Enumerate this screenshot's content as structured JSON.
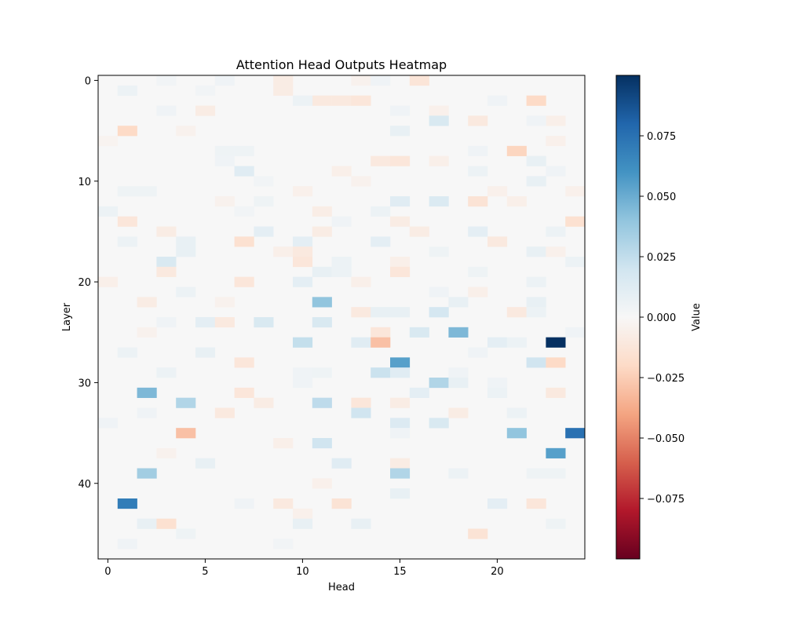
{
  "chart_data": {
    "type": "heatmap",
    "title": "Attention Head Outputs Heatmap",
    "xlabel": "Head",
    "ylabel": "Layer",
    "n_heads": 25,
    "n_layers": 48,
    "x_ticks": [
      "0",
      "5",
      "10",
      "15",
      "20"
    ],
    "y_ticks": [
      "0",
      "10",
      "20",
      "30",
      "40"
    ],
    "colorbar": {
      "label": "Value",
      "colormap": "RdBu",
      "vmin": -0.1,
      "vmax": 0.1,
      "ticks": [
        "0.075",
        "0.050",
        "0.025",
        "0.000",
        "−0.025",
        "−0.050",
        "−0.075"
      ],
      "tick_values": [
        0.075,
        0.05,
        0.025,
        0.0,
        -0.025,
        -0.05,
        -0.075
      ]
    },
    "background_value": 0.0,
    "cells": [
      [
        0,
        16,
        -0.013
      ],
      [
        0,
        9,
        -0.008
      ],
      [
        0,
        13,
        -0.004
      ],
      [
        0,
        14,
        0.004
      ],
      [
        0,
        6,
        0.004
      ],
      [
        0,
        3,
        0.003
      ],
      [
        1,
        1,
        0.006
      ],
      [
        1,
        9,
        -0.008
      ],
      [
        1,
        5,
        0.003
      ],
      [
        2,
        22,
        -0.02
      ],
      [
        2,
        11,
        -0.01
      ],
      [
        2,
        12,
        -0.01
      ],
      [
        2,
        13,
        -0.012
      ],
      [
        2,
        10,
        0.006
      ],
      [
        2,
        20,
        0.004
      ],
      [
        3,
        3,
        0.004
      ],
      [
        3,
        5,
        -0.008
      ],
      [
        3,
        15,
        0.004
      ],
      [
        3,
        17,
        -0.005
      ],
      [
        4,
        17,
        0.016
      ],
      [
        4,
        19,
        -0.01
      ],
      [
        4,
        23,
        -0.006
      ],
      [
        4,
        22,
        0.004
      ],
      [
        5,
        1,
        -0.02
      ],
      [
        5,
        15,
        0.008
      ],
      [
        5,
        4,
        -0.004
      ],
      [
        6,
        23,
        -0.005
      ],
      [
        6,
        0,
        -0.003
      ],
      [
        7,
        21,
        -0.022
      ],
      [
        7,
        6,
        0.005
      ],
      [
        7,
        7,
        0.005
      ],
      [
        7,
        19,
        0.004
      ],
      [
        8,
        14,
        -0.01
      ],
      [
        8,
        15,
        -0.012
      ],
      [
        8,
        17,
        -0.006
      ],
      [
        8,
        22,
        0.008
      ],
      [
        8,
        6,
        0.004
      ],
      [
        9,
        7,
        0.012
      ],
      [
        9,
        12,
        -0.006
      ],
      [
        9,
        19,
        0.006
      ],
      [
        9,
        23,
        0.004
      ],
      [
        10,
        22,
        0.008
      ],
      [
        10,
        13,
        -0.004
      ],
      [
        10,
        8,
        0.003
      ],
      [
        11,
        1,
        0.005
      ],
      [
        11,
        2,
        0.005
      ],
      [
        11,
        10,
        -0.005
      ],
      [
        11,
        20,
        -0.005
      ],
      [
        11,
        24,
        -0.005
      ],
      [
        12,
        15,
        0.012
      ],
      [
        12,
        17,
        0.015
      ],
      [
        12,
        19,
        -0.014
      ],
      [
        12,
        21,
        -0.006
      ],
      [
        12,
        6,
        -0.004
      ],
      [
        12,
        8,
        0.005
      ],
      [
        13,
        0,
        0.006
      ],
      [
        13,
        11,
        -0.007
      ],
      [
        13,
        14,
        0.006
      ],
      [
        13,
        7,
        0.003
      ],
      [
        14,
        1,
        -0.012
      ],
      [
        14,
        24,
        -0.016
      ],
      [
        14,
        12,
        0.004
      ],
      [
        14,
        15,
        -0.008
      ],
      [
        15,
        3,
        -0.008
      ],
      [
        15,
        8,
        0.01
      ],
      [
        15,
        11,
        -0.008
      ],
      [
        15,
        16,
        -0.008
      ],
      [
        15,
        19,
        0.01
      ],
      [
        15,
        23,
        0.006
      ],
      [
        16,
        1,
        0.006
      ],
      [
        16,
        4,
        0.008
      ],
      [
        16,
        7,
        -0.016
      ],
      [
        16,
        10,
        0.01
      ],
      [
        16,
        14,
        0.01
      ],
      [
        16,
        20,
        -0.01
      ],
      [
        17,
        4,
        0.008
      ],
      [
        17,
        9,
        -0.006
      ],
      [
        17,
        10,
        -0.01
      ],
      [
        17,
        17,
        0.005
      ],
      [
        17,
        22,
        0.008
      ],
      [
        17,
        23,
        -0.005
      ],
      [
        18,
        3,
        0.016
      ],
      [
        18,
        10,
        -0.012
      ],
      [
        18,
        12,
        0.006
      ],
      [
        18,
        15,
        -0.006
      ],
      [
        18,
        24,
        0.006
      ],
      [
        19,
        3,
        -0.01
      ],
      [
        19,
        11,
        0.008
      ],
      [
        19,
        12,
        0.006
      ],
      [
        19,
        15,
        -0.012
      ],
      [
        19,
        19,
        0.005
      ],
      [
        20,
        0,
        -0.006
      ],
      [
        20,
        7,
        -0.012
      ],
      [
        20,
        10,
        0.01
      ],
      [
        20,
        13,
        -0.006
      ],
      [
        20,
        22,
        0.006
      ],
      [
        21,
        4,
        0.006
      ],
      [
        21,
        19,
        -0.006
      ],
      [
        21,
        17,
        0.004
      ],
      [
        22,
        11,
        0.04
      ],
      [
        22,
        2,
        -0.008
      ],
      [
        22,
        18,
        0.008
      ],
      [
        22,
        22,
        0.008
      ],
      [
        22,
        6,
        -0.004
      ],
      [
        23,
        13,
        -0.01
      ],
      [
        23,
        14,
        0.008
      ],
      [
        23,
        15,
        0.008
      ],
      [
        23,
        17,
        0.018
      ],
      [
        23,
        21,
        -0.01
      ],
      [
        23,
        22,
        0.006
      ],
      [
        24,
        5,
        0.01
      ],
      [
        24,
        6,
        -0.01
      ],
      [
        24,
        8,
        0.016
      ],
      [
        24,
        11,
        0.016
      ],
      [
        24,
        3,
        0.004
      ],
      [
        25,
        14,
        -0.012
      ],
      [
        25,
        16,
        0.016
      ],
      [
        25,
        18,
        0.045
      ],
      [
        25,
        2,
        -0.004
      ],
      [
        25,
        24,
        0.004
      ],
      [
        26,
        10,
        0.024
      ],
      [
        26,
        13,
        0.012
      ],
      [
        26,
        14,
        -0.03
      ],
      [
        26,
        20,
        0.01
      ],
      [
        26,
        21,
        0.006
      ],
      [
        26,
        23,
        0.1
      ],
      [
        27,
        1,
        0.006
      ],
      [
        27,
        5,
        0.008
      ],
      [
        27,
        19,
        0.004
      ],
      [
        28,
        7,
        -0.012
      ],
      [
        28,
        15,
        0.055
      ],
      [
        28,
        22,
        0.02
      ],
      [
        28,
        23,
        -0.02
      ],
      [
        29,
        3,
        0.006
      ],
      [
        29,
        11,
        0.005
      ],
      [
        29,
        14,
        0.022
      ],
      [
        29,
        15,
        0.012
      ],
      [
        29,
        10,
        0.004
      ],
      [
        29,
        18,
        0.004
      ],
      [
        30,
        17,
        0.03
      ],
      [
        30,
        18,
        0.008
      ],
      [
        30,
        10,
        0.004
      ],
      [
        30,
        20,
        0.004
      ],
      [
        31,
        2,
        0.045
      ],
      [
        31,
        7,
        -0.012
      ],
      [
        31,
        16,
        0.01
      ],
      [
        31,
        23,
        -0.01
      ],
      [
        31,
        20,
        0.006
      ],
      [
        32,
        4,
        0.03
      ],
      [
        32,
        8,
        -0.008
      ],
      [
        32,
        11,
        0.026
      ],
      [
        32,
        13,
        -0.012
      ],
      [
        32,
        15,
        -0.008
      ],
      [
        33,
        6,
        -0.01
      ],
      [
        33,
        13,
        0.02
      ],
      [
        33,
        18,
        -0.008
      ],
      [
        33,
        21,
        0.006
      ],
      [
        33,
        2,
        0.004
      ],
      [
        34,
        15,
        0.014
      ],
      [
        34,
        17,
        0.016
      ],
      [
        34,
        0,
        0.004
      ],
      [
        35,
        4,
        -0.03
      ],
      [
        35,
        21,
        0.04
      ],
      [
        35,
        24,
        0.075
      ],
      [
        35,
        15,
        0.004
      ],
      [
        36,
        11,
        0.02
      ],
      [
        36,
        9,
        -0.006
      ],
      [
        37,
        23,
        0.055
      ],
      [
        37,
        3,
        -0.004
      ],
      [
        38,
        5,
        0.008
      ],
      [
        38,
        12,
        0.012
      ],
      [
        38,
        15,
        -0.008
      ],
      [
        39,
        2,
        0.035
      ],
      [
        39,
        15,
        0.03
      ],
      [
        39,
        18,
        0.006
      ],
      [
        39,
        22,
        0.005
      ],
      [
        39,
        23,
        0.005
      ],
      [
        40,
        11,
        -0.005
      ],
      [
        41,
        15,
        0.008
      ],
      [
        42,
        1,
        0.07
      ],
      [
        42,
        9,
        -0.01
      ],
      [
        42,
        12,
        -0.014
      ],
      [
        42,
        20,
        0.01
      ],
      [
        42,
        22,
        -0.012
      ],
      [
        42,
        7,
        0.004
      ],
      [
        43,
        10,
        -0.005
      ],
      [
        44,
        2,
        0.008
      ],
      [
        44,
        3,
        -0.016
      ],
      [
        44,
        10,
        0.008
      ],
      [
        44,
        13,
        0.008
      ],
      [
        44,
        23,
        0.005
      ],
      [
        45,
        4,
        0.005
      ],
      [
        45,
        19,
        -0.014
      ],
      [
        46,
        1,
        0.004
      ],
      [
        46,
        9,
        0.003
      ]
    ]
  }
}
